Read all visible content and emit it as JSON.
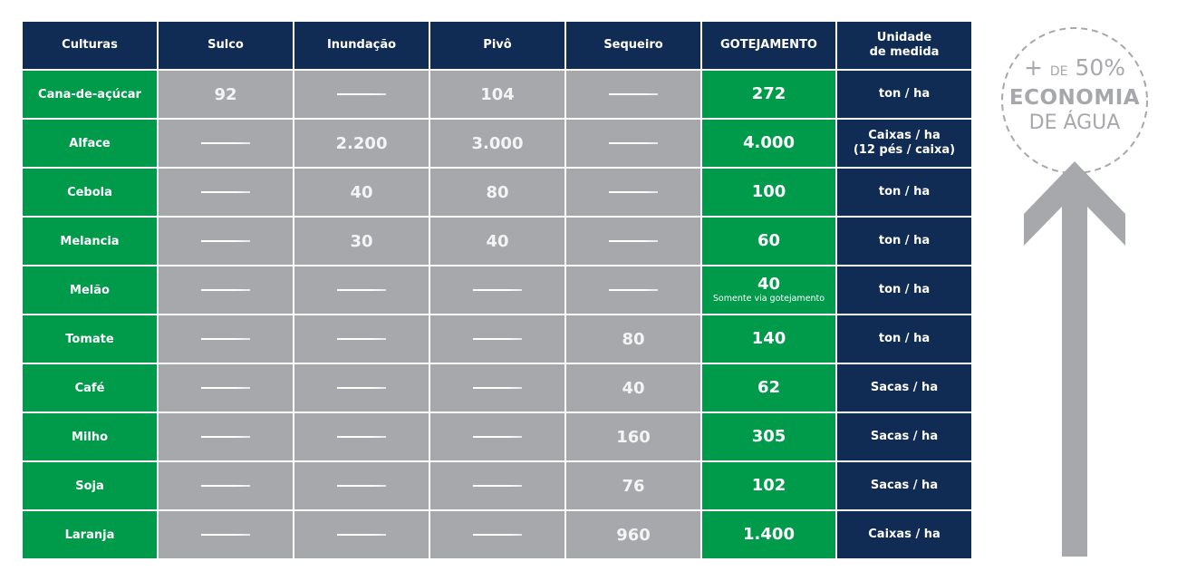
{
  "table": {
    "headers": [
      "Culturas",
      "Sulco",
      "Inundação",
      "Pivô",
      "Sequeiro",
      "GOTEJAMENTO",
      "Unidade\nde medida"
    ],
    "header_unit_line1": "Unidade",
    "header_unit_line2": "de medida",
    "dash": "——",
    "rows": [
      {
        "crop": "Cana-de-açúcar",
        "sulco": "92",
        "inundacao": null,
        "pivo": "104",
        "sequeiro": null,
        "gotejamento": "272",
        "note": "",
        "unit1": "ton / ha",
        "unit2": ""
      },
      {
        "crop": "Alface",
        "sulco": null,
        "inundacao": "2.200",
        "pivo": "3.000",
        "sequeiro": null,
        "gotejamento": "4.000",
        "note": "",
        "unit1": "Caixas / ha",
        "unit2": "(12 pés / caixa)"
      },
      {
        "crop": "Cebola",
        "sulco": null,
        "inundacao": "40",
        "pivo": "80",
        "sequeiro": null,
        "gotejamento": "100",
        "note": "",
        "unit1": "ton / ha",
        "unit2": ""
      },
      {
        "crop": "Melancia",
        "sulco": null,
        "inundacao": "30",
        "pivo": "40",
        "sequeiro": null,
        "gotejamento": "60",
        "note": "",
        "unit1": "ton / ha",
        "unit2": ""
      },
      {
        "crop": "Melão",
        "sulco": null,
        "inundacao": null,
        "pivo": null,
        "sequeiro": null,
        "gotejamento": "40",
        "note": "Somente via gotejamento",
        "unit1": "ton / ha",
        "unit2": ""
      },
      {
        "crop": "Tomate",
        "sulco": null,
        "inundacao": null,
        "pivo": null,
        "sequeiro": "80",
        "gotejamento": "140",
        "note": "",
        "unit1": "ton / ha",
        "unit2": ""
      },
      {
        "crop": "Café",
        "sulco": null,
        "inundacao": null,
        "pivo": null,
        "sequeiro": "40",
        "gotejamento": "62",
        "note": "",
        "unit1": "Sacas / ha",
        "unit2": ""
      },
      {
        "crop": "Milho",
        "sulco": null,
        "inundacao": null,
        "pivo": null,
        "sequeiro": "160",
        "gotejamento": "305",
        "note": "",
        "unit1": "Sacas / ha",
        "unit2": ""
      },
      {
        "crop": "Soja",
        "sulco": null,
        "inundacao": null,
        "pivo": null,
        "sequeiro": "76",
        "gotejamento": "102",
        "note": "",
        "unit1": "Sacas / ha",
        "unit2": ""
      },
      {
        "crop": "Laranja",
        "sulco": null,
        "inundacao": null,
        "pivo": null,
        "sequeiro": "960",
        "gotejamento": "1.400",
        "note": "",
        "unit1": "Caixas / ha",
        "unit2": ""
      }
    ]
  },
  "badge": {
    "plus": "+",
    "de": "DE",
    "percent": "50%",
    "line2": "ECONOMIA",
    "line3": "DE ÁGUA"
  },
  "colors": {
    "navy": "#112c54",
    "green": "#009a4b",
    "gray": "#a7a8ab",
    "white": "#ffffff"
  },
  "chart_data": {
    "type": "table",
    "title": "",
    "columns": [
      "Culturas",
      "Sulco",
      "Inundação",
      "Pivô",
      "Sequeiro",
      "GOTEJAMENTO",
      "Unidade de medida"
    ],
    "rows": [
      [
        "Cana-de-açúcar",
        92,
        null,
        104,
        null,
        272,
        "ton / ha"
      ],
      [
        "Alface",
        null,
        2200,
        3000,
        null,
        4000,
        "Caixas / ha (12 pés / caixa)"
      ],
      [
        "Cebola",
        null,
        40,
        80,
        null,
        100,
        "ton / ha"
      ],
      [
        "Melancia",
        null,
        30,
        40,
        null,
        60,
        "ton / ha"
      ],
      [
        "Melão",
        null,
        null,
        null,
        null,
        40,
        "ton / ha"
      ],
      [
        "Tomate",
        null,
        null,
        null,
        80,
        140,
        "ton / ha"
      ],
      [
        "Café",
        null,
        null,
        null,
        40,
        62,
        "Sacas / ha"
      ],
      [
        "Milho",
        null,
        null,
        null,
        160,
        305,
        "Sacas / ha"
      ],
      [
        "Soja",
        null,
        null,
        null,
        76,
        102,
        "Sacas / ha"
      ],
      [
        "Laranja",
        null,
        null,
        null,
        960,
        1400,
        "Caixas / ha"
      ]
    ],
    "annotations": [
      "Somente via gotejamento (Melão)",
      "+ DE 50% ECONOMIA DE ÁGUA"
    ]
  }
}
